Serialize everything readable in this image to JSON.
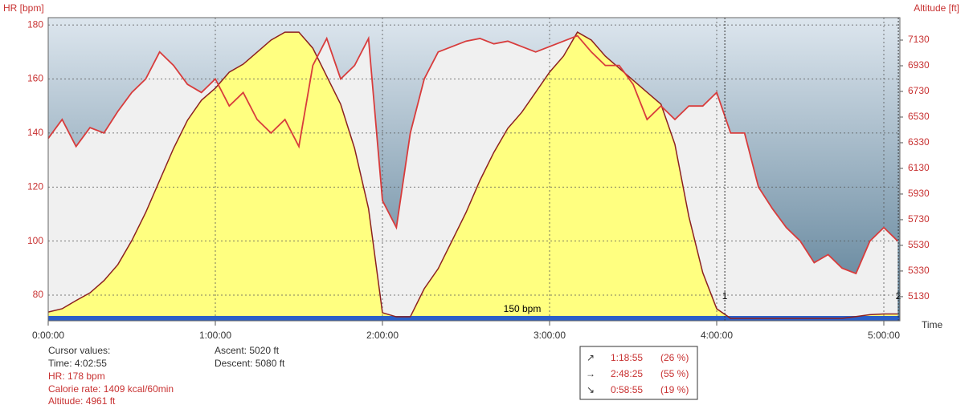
{
  "chart_data": {
    "type": "line",
    "y_label": "HR [bpm]",
    "y2_label": "Altitude [ft]",
    "x_label": "Time",
    "zone_label": "150 bpm",
    "x": [
      0,
      300,
      600,
      900,
      1200,
      1500,
      1800,
      2100,
      2400,
      2700,
      3000,
      3300,
      3600,
      3900,
      4200,
      4500,
      4800,
      5100,
      5400,
      5700,
      6000,
      6300,
      6600,
      6900,
      7200,
      7500,
      7800,
      8100,
      8400,
      8700,
      9000,
      9300,
      9600,
      9900,
      10200,
      10500,
      10800,
      11100,
      11400,
      11700,
      12000,
      12300,
      12600,
      12900,
      13200,
      13500,
      13800,
      14100,
      14400,
      14700,
      15000,
      15300,
      15600,
      15900,
      16200,
      16500,
      16800,
      17100,
      17400,
      17700,
      18000,
      18300
    ],
    "series": [
      {
        "name": "HR",
        "color": "#d83c3c",
        "axis": "y",
        "values": [
          138,
          145,
          135,
          142,
          140,
          148,
          155,
          160,
          170,
          165,
          158,
          155,
          160,
          150,
          155,
          145,
          140,
          145,
          135,
          165,
          175,
          160,
          165,
          175,
          115,
          105,
          140,
          160,
          170,
          172,
          174,
          175,
          173,
          174,
          172,
          170,
          172,
          174,
          176,
          170,
          165,
          165,
          158,
          145,
          150,
          145,
          150,
          150,
          155,
          140,
          140,
          120,
          112,
          105,
          100,
          92,
          95,
          90,
          88,
          100,
          105,
          100
        ]
      },
      {
        "name": "Altitude",
        "color": "#8c2020",
        "fill": "#ffff80",
        "axis": "y2",
        "values": [
          5010,
          5036,
          5100,
          5160,
          5255,
          5380,
          5567,
          5786,
          6036,
          6286,
          6505,
          6661,
          6755,
          6880,
          6942,
          7036,
          7130,
          7192,
          7192,
          7067,
          6848,
          6630,
          6286,
          5817,
          5005,
          4973,
          4973,
          5192,
          5348,
          5567,
          5786,
          6036,
          6255,
          6442,
          6567,
          6723,
          6880,
          7005,
          7192,
          7130,
          7005,
          6911,
          6817,
          6723,
          6630,
          6317,
          5755,
          5317,
          5036,
          4961,
          4961,
          4961,
          4961,
          4961,
          4961,
          4961,
          4961,
          4961,
          4975,
          4990,
          4995,
          4995
        ]
      }
    ],
    "xlim": [
      0,
      18346
    ],
    "xticks": [
      {
        "value": 0,
        "label": "0:00:00"
      },
      {
        "value": 3600,
        "label": "1:00:00"
      },
      {
        "value": 7200,
        "label": "2:00:00"
      },
      {
        "value": 10800,
        "label": "3:00:00"
      },
      {
        "value": 14400,
        "label": "4:00:00"
      },
      {
        "value": 18000,
        "label": "5:00:00"
      }
    ],
    "ylim": [
      70.5,
      182.7
    ],
    "yticks": [
      80,
      100,
      120,
      140,
      160,
      180
    ],
    "y2lim": [
      4942,
      7305
    ],
    "y2ticks": [
      5130,
      5330,
      5530,
      5730,
      5930,
      6130,
      6330,
      6530,
      6730,
      6930,
      7130
    ],
    "grid": true,
    "laps": [
      {
        "label": "1",
        "x": 14575
      },
      {
        "label": "2",
        "x": 18313
      }
    ]
  },
  "cursor_values": {
    "title": "Cursor values:",
    "time": "Time: 4:02:55",
    "hr": "HR: 178 bpm",
    "calorie_rate": "Calorie rate: 1409 kcal/60min",
    "altitude": "Altitude: 4961 ft"
  },
  "totals": {
    "ascent": "Ascent: 5020 ft",
    "descent": "Descent: 5080 ft"
  },
  "duration_table": {
    "rows": [
      [
        "↗",
        "1:18:55",
        "(26 %)"
      ],
      [
        "→",
        "2:48:25",
        "(55 %)"
      ],
      [
        "↘",
        "0:58:55",
        "(19 %)"
      ]
    ]
  }
}
